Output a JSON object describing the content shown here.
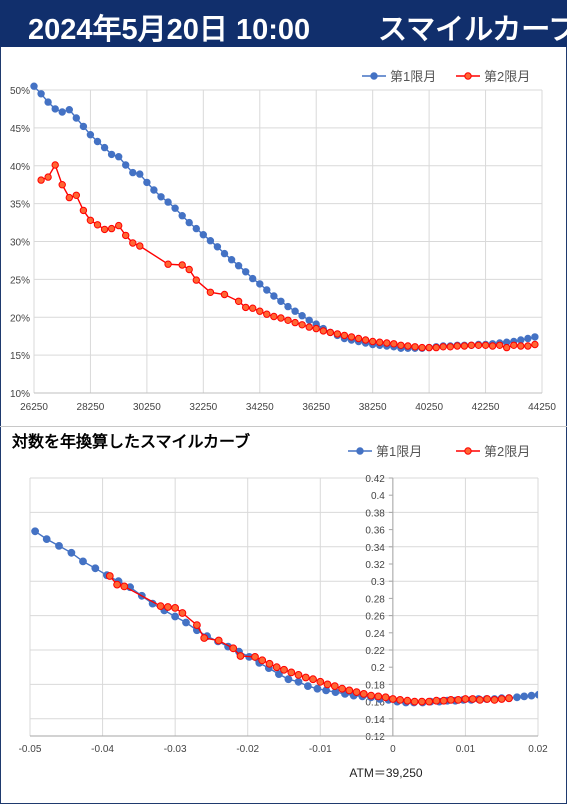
{
  "header": {
    "date": "2024年5月20日 10:00",
    "title": "スマイルカーブ",
    "bg_color": "#112f6c"
  },
  "colors": {
    "series1": "#4472c4",
    "series2": "#ff0000",
    "series2_fill": "#ff6633"
  },
  "chart_data": [
    {
      "type": "line",
      "title": "",
      "xlabel": "",
      "ylabel": "",
      "xlim": [
        26250,
        44250
      ],
      "ylim": [
        0.1,
        0.5
      ],
      "x_ticks": [
        "26250",
        "28250",
        "30250",
        "32250",
        "34250",
        "36250",
        "38250",
        "40250",
        "42250",
        "44250"
      ],
      "y_ticks": [
        "10%",
        "15%",
        "20%",
        "25%",
        "30%",
        "35%",
        "40%",
        "45%",
        "50%"
      ],
      "legend": "top-right",
      "grid": true,
      "series": [
        {
          "name": "第1限月",
          "x": [
            26250,
            26500,
            26750,
            27000,
            27250,
            27500,
            27750,
            28000,
            28250,
            28500,
            28750,
            29000,
            29250,
            29500,
            29750,
            30000,
            30250,
            30500,
            30750,
            31000,
            31250,
            31500,
            31750,
            32000,
            32250,
            32500,
            32750,
            33000,
            33250,
            33500,
            33750,
            34000,
            34250,
            34500,
            34750,
            35000,
            35250,
            35500,
            35750,
            36000,
            36250,
            36500,
            36750,
            37000,
            37250,
            37500,
            37750,
            38000,
            38250,
            38500,
            38750,
            39000,
            39250,
            39500,
            39750,
            40000,
            40250,
            40500,
            40750,
            41000,
            41250,
            41500,
            41750,
            42000,
            42250,
            42500,
            42750,
            43000,
            43250,
            43500,
            43750,
            44000
          ],
          "values": [
            0.505,
            0.495,
            0.484,
            0.475,
            0.471,
            0.474,
            0.463,
            0.452,
            0.441,
            0.432,
            0.424,
            0.415,
            0.412,
            0.401,
            0.391,
            0.389,
            0.378,
            0.368,
            0.359,
            0.352,
            0.344,
            0.334,
            0.325,
            0.317,
            0.309,
            0.301,
            0.293,
            0.284,
            0.276,
            0.268,
            0.26,
            0.251,
            0.244,
            0.236,
            0.228,
            0.221,
            0.214,
            0.208,
            0.202,
            0.196,
            0.191,
            0.185,
            0.18,
            0.176,
            0.172,
            0.17,
            0.168,
            0.166,
            0.164,
            0.163,
            0.162,
            0.161,
            0.159,
            0.159,
            0.159,
            0.159,
            0.16,
            0.161,
            0.162,
            0.162,
            0.163,
            0.163,
            0.163,
            0.164,
            0.164,
            0.165,
            0.166,
            0.167,
            0.168,
            0.17,
            0.172,
            0.174
          ]
        },
        {
          "name": "第2限月",
          "x": [
            26500,
            26750,
            27000,
            27250,
            27500,
            27750,
            28000,
            28250,
            28500,
            28750,
            29000,
            29250,
            29500,
            29750,
            30000,
            31000,
            31500,
            31750,
            32000,
            32500,
            33000,
            33500,
            33750,
            34000,
            34250,
            34500,
            34750,
            35000,
            35250,
            35500,
            35750,
            36000,
            36250,
            36500,
            36750,
            37000,
            37250,
            37500,
            37750,
            38000,
            38250,
            38500,
            38750,
            39000,
            39250,
            39500,
            39750,
            40000,
            40250,
            40500,
            40750,
            41000,
            41250,
            41500,
            41750,
            42000,
            42250,
            42500,
            42750,
            43000,
            43250,
            43500,
            43750,
            44000
          ],
          "values": [
            0.381,
            0.385,
            0.401,
            0.375,
            0.358,
            0.361,
            0.341,
            0.328,
            0.322,
            0.316,
            0.317,
            0.321,
            0.308,
            0.298,
            0.294,
            0.27,
            0.269,
            0.263,
            0.249,
            0.233,
            0.23,
            0.221,
            0.213,
            0.212,
            0.208,
            0.204,
            0.201,
            0.199,
            0.196,
            0.193,
            0.19,
            0.187,
            0.185,
            0.182,
            0.18,
            0.178,
            0.176,
            0.174,
            0.172,
            0.17,
            0.168,
            0.167,
            0.166,
            0.165,
            0.163,
            0.162,
            0.161,
            0.16,
            0.16,
            0.16,
            0.161,
            0.161,
            0.162,
            0.162,
            0.163,
            0.163,
            0.163,
            0.162,
            0.163,
            0.16,
            0.163,
            0.162,
            0.162,
            0.164
          ]
        }
      ]
    },
    {
      "type": "line",
      "title": "対数を年換算したスマイルカーブ",
      "xlabel": "",
      "ylabel": "",
      "xlim": [
        -0.05,
        0.02
      ],
      "ylim": [
        0.12,
        0.42
      ],
      "x_ticks": [
        "-0.05",
        "-0.04",
        "-0.03",
        "-0.02",
        "-0.01",
        "0",
        "0.01",
        "0.02"
      ],
      "y_ticks": [
        "0.12",
        "0.14",
        "0.16",
        "0.18",
        "0.2",
        "0.22",
        "0.24",
        "0.26",
        "0.28",
        "0.3",
        "0.32",
        "0.34",
        "0.36",
        "0.38",
        "0.4",
        "0.42"
      ],
      "legend": "top-right",
      "grid": true,
      "annotation": "ATM＝39,250",
      "series": [
        {
          "name": "第1限月",
          "x": [
            -0.0493,
            -0.0477,
            -0.046,
            -0.0443,
            -0.0427,
            -0.041,
            -0.0394,
            -0.0378,
            -0.0362,
            -0.0346,
            -0.0331,
            -0.0315,
            -0.03,
            -0.0285,
            -0.027,
            -0.0256,
            -0.0241,
            -0.0227,
            -0.0212,
            -0.0198,
            -0.0184,
            -0.0171,
            -0.0157,
            -0.0144,
            -0.013,
            -0.0117,
            -0.0104,
            -0.0092,
            -0.0079,
            -0.0066,
            -0.0054,
            -0.0042,
            -0.003,
            -0.0018,
            -0.0006,
            0.0006,
            0.0018,
            0.0029,
            0.0041,
            0.0052,
            0.0064,
            0.0075,
            0.0086,
            0.0097,
            0.0108,
            0.0118,
            0.0129,
            0.014,
            0.015,
            0.016,
            0.0171,
            0.0181,
            0.0191,
            0.0201
          ],
          "values": [
            0.358,
            0.349,
            0.341,
            0.333,
            0.323,
            0.315,
            0.307,
            0.3,
            0.293,
            0.283,
            0.274,
            0.266,
            0.259,
            0.252,
            0.243,
            0.236,
            0.23,
            0.224,
            0.218,
            0.212,
            0.205,
            0.199,
            0.192,
            0.186,
            0.183,
            0.178,
            0.175,
            0.173,
            0.171,
            0.169,
            0.167,
            0.166,
            0.165,
            0.163,
            0.162,
            0.16,
            0.159,
            0.159,
            0.159,
            0.16,
            0.16,
            0.161,
            0.161,
            0.162,
            0.162,
            0.163,
            0.163,
            0.163,
            0.164,
            0.164,
            0.165,
            0.166,
            0.167,
            0.168
          ]
        },
        {
          "name": "第2限月",
          "x": [
            -0.039,
            -0.038,
            -0.037,
            -0.032,
            -0.031,
            -0.03,
            -0.029,
            -0.027,
            -0.026,
            -0.024,
            -0.022,
            -0.021,
            -0.019,
            -0.018,
            -0.017,
            -0.016,
            -0.015,
            -0.014,
            -0.013,
            -0.012,
            -0.011,
            -0.01,
            -0.009,
            -0.008,
            -0.007,
            -0.006,
            -0.005,
            -0.004,
            -0.003,
            -0.002,
            -0.001,
            0.0,
            0.001,
            0.002,
            0.003,
            0.004,
            0.005,
            0.006,
            0.007,
            0.008,
            0.009,
            0.01,
            0.011,
            0.012,
            0.013,
            0.014,
            0.015,
            0.016
          ],
          "values": [
            0.306,
            0.296,
            0.294,
            0.271,
            0.27,
            0.269,
            0.263,
            0.249,
            0.234,
            0.231,
            0.222,
            0.213,
            0.212,
            0.208,
            0.204,
            0.2,
            0.197,
            0.194,
            0.191,
            0.188,
            0.186,
            0.183,
            0.18,
            0.178,
            0.175,
            0.173,
            0.171,
            0.169,
            0.167,
            0.166,
            0.165,
            0.163,
            0.162,
            0.161,
            0.16,
            0.16,
            0.16,
            0.161,
            0.161,
            0.162,
            0.162,
            0.163,
            0.163,
            0.162,
            0.163,
            0.162,
            0.163,
            0.164
          ]
        }
      ]
    }
  ]
}
